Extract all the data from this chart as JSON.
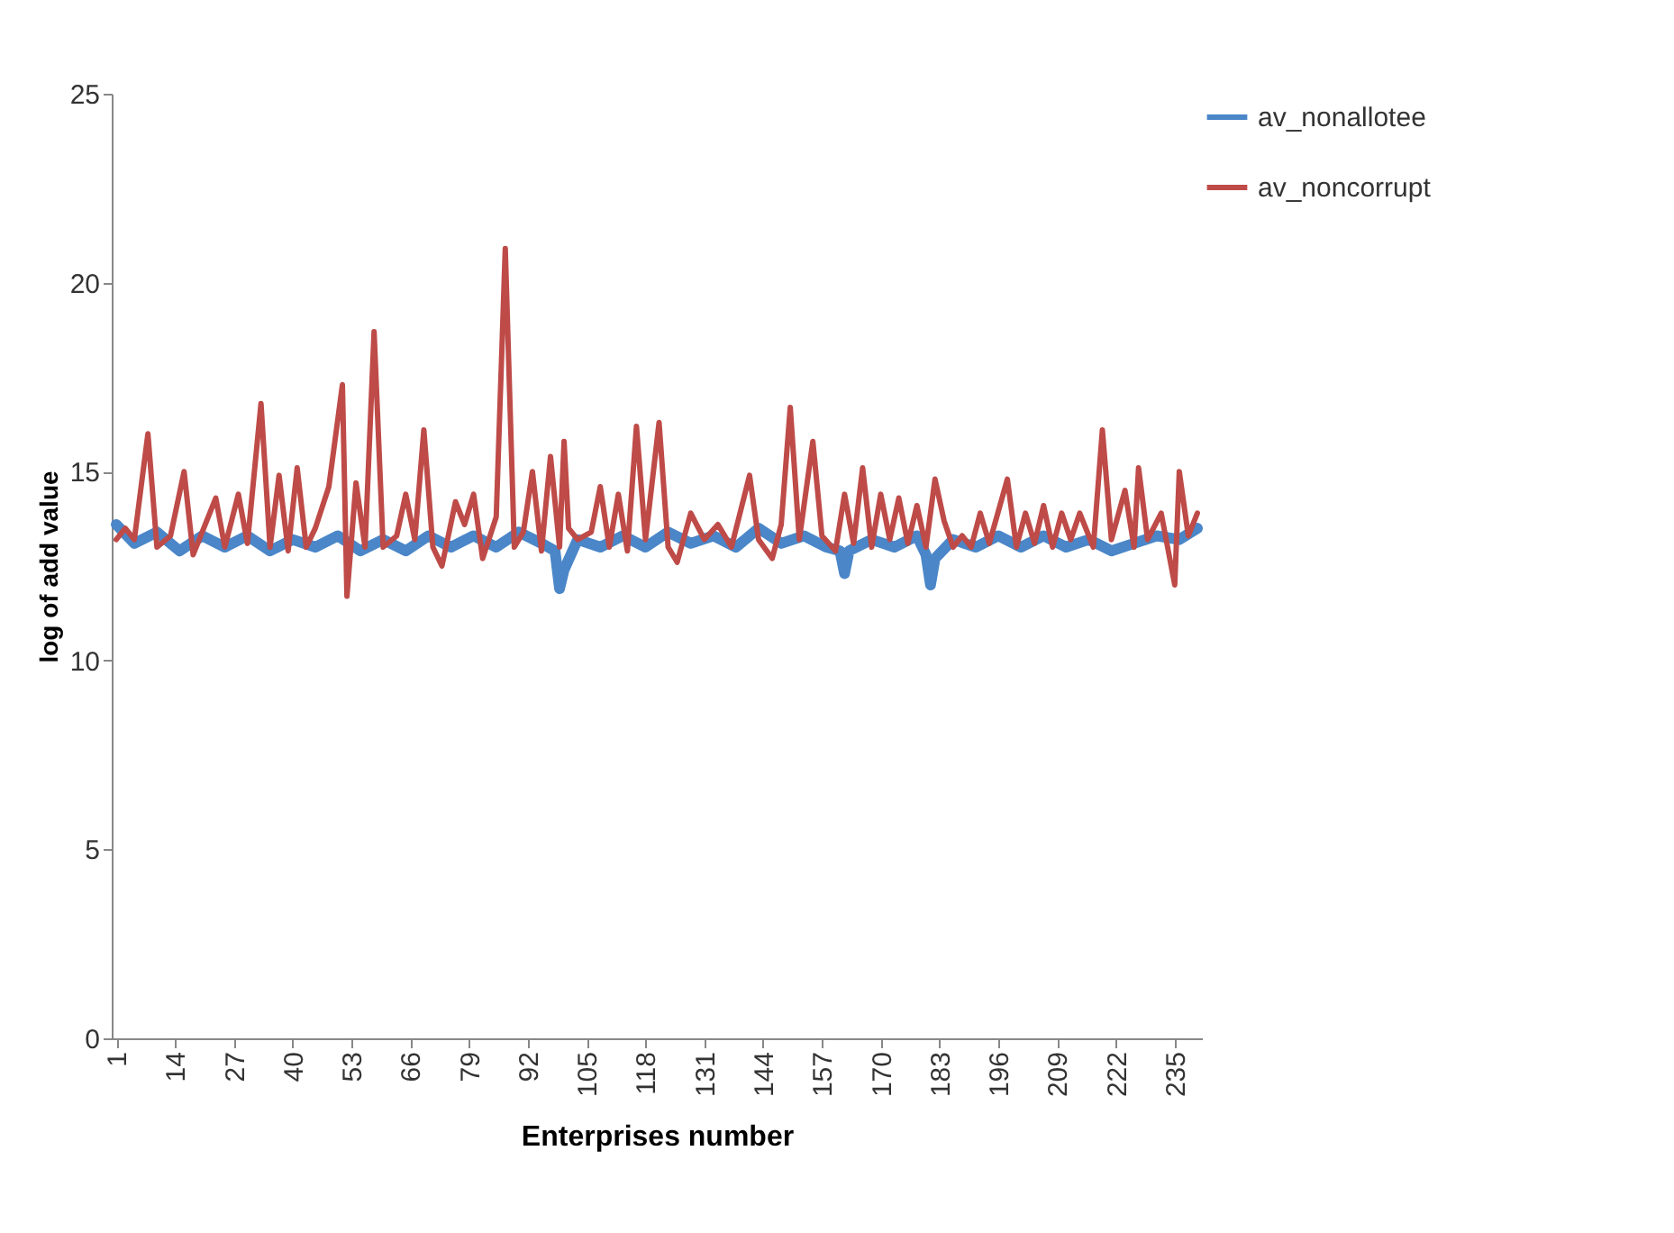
{
  "chart_data": {
    "type": "line",
    "xlabel": "Enterprises number",
    "ylabel": "log of add value",
    "xlim": [
      0,
      241
    ],
    "xticks": [
      1,
      14,
      27,
      40,
      53,
      66,
      79,
      92,
      105,
      118,
      131,
      144,
      157,
      170,
      183,
      196,
      209,
      222,
      235
    ],
    "ylim": [
      0,
      25
    ],
    "yticks": [
      0,
      5,
      10,
      15,
      20,
      25
    ],
    "legend": "right",
    "grid": false,
    "series": [
      {
        "name": "av_nonallotee",
        "color": "#4a86c8",
        "x": [
          1,
          5,
          10,
          15,
          20,
          25,
          30,
          35,
          40,
          45,
          50,
          55,
          60,
          65,
          70,
          75,
          80,
          85,
          90,
          95,
          98,
          99,
          100,
          103,
          108,
          113,
          118,
          123,
          128,
          133,
          138,
          143,
          148,
          153,
          158,
          161,
          162,
          163,
          168,
          173,
          178,
          180,
          181,
          182,
          186,
          191,
          196,
          201,
          206,
          211,
          216,
          221,
          226,
          231,
          236,
          240
        ],
        "values": [
          13.6,
          13.1,
          13.4,
          12.9,
          13.3,
          13.0,
          13.3,
          12.9,
          13.2,
          13.0,
          13.3,
          12.9,
          13.2,
          12.9,
          13.3,
          13.0,
          13.3,
          13.0,
          13.4,
          13.1,
          12.9,
          11.9,
          12.4,
          13.2,
          13.0,
          13.3,
          13.0,
          13.4,
          13.1,
          13.3,
          13.0,
          13.5,
          13.1,
          13.3,
          13.0,
          12.9,
          12.3,
          12.9,
          13.2,
          13.0,
          13.3,
          12.8,
          12.0,
          12.7,
          13.2,
          13.0,
          13.3,
          13.0,
          13.3,
          13.0,
          13.2,
          12.9,
          13.1,
          13.3,
          13.2,
          13.5
        ]
      },
      {
        "name": "av_noncorrupt",
        "color": "#be4b48",
        "x": [
          1,
          3,
          5,
          8,
          10,
          13,
          16,
          18,
          20,
          23,
          25,
          28,
          30,
          33,
          35,
          37,
          39,
          41,
          43,
          45,
          48,
          51,
          52,
          54,
          56,
          58,
          60,
          63,
          65,
          67,
          69,
          71,
          73,
          76,
          78,
          80,
          82,
          85,
          87,
          89,
          91,
          93,
          95,
          97,
          99,
          100,
          101,
          103,
          106,
          108,
          110,
          112,
          114,
          116,
          118,
          121,
          123,
          125,
          128,
          131,
          134,
          137,
          141,
          143,
          146,
          148,
          150,
          152,
          155,
          157,
          160,
          162,
          164,
          166,
          168,
          170,
          172,
          174,
          176,
          178,
          180,
          182,
          184,
          186,
          188,
          190,
          192,
          194,
          198,
          200,
          202,
          204,
          206,
          208,
          210,
          212,
          214,
          217,
          219,
          221,
          224,
          226,
          227,
          229,
          232,
          235,
          236,
          238,
          240
        ],
        "values": [
          13.2,
          13.5,
          13.2,
          16.0,
          13.0,
          13.3,
          15.0,
          12.8,
          13.4,
          14.3,
          13.0,
          14.4,
          13.1,
          16.8,
          13.0,
          14.9,
          12.9,
          15.1,
          13.0,
          13.5,
          14.6,
          17.3,
          11.7,
          14.7,
          13.0,
          18.7,
          13.0,
          13.3,
          14.4,
          13.2,
          16.1,
          13.0,
          12.5,
          14.2,
          13.6,
          14.4,
          12.7,
          13.8,
          20.9,
          13.0,
          13.4,
          15.0,
          12.9,
          15.4,
          13.0,
          15.8,
          13.5,
          13.2,
          13.4,
          14.6,
          13.0,
          14.4,
          12.9,
          16.2,
          13.2,
          16.3,
          13.0,
          12.6,
          13.9,
          13.2,
          13.6,
          13.0,
          14.9,
          13.2,
          12.7,
          13.6,
          16.7,
          13.2,
          15.8,
          13.3,
          12.9,
          14.4,
          13.1,
          15.1,
          13.0,
          14.4,
          13.2,
          14.3,
          13.1,
          14.1,
          13.0,
          14.8,
          13.7,
          13.0,
          13.3,
          13.0,
          13.9,
          13.1,
          14.8,
          13.0,
          13.9,
          13.1,
          14.1,
          13.0,
          13.9,
          13.2,
          13.9,
          13.0,
          16.1,
          13.2,
          14.5,
          13.0,
          15.1,
          13.2,
          13.9,
          12.0,
          15.0,
          13.3,
          13.9
        ]
      }
    ]
  }
}
